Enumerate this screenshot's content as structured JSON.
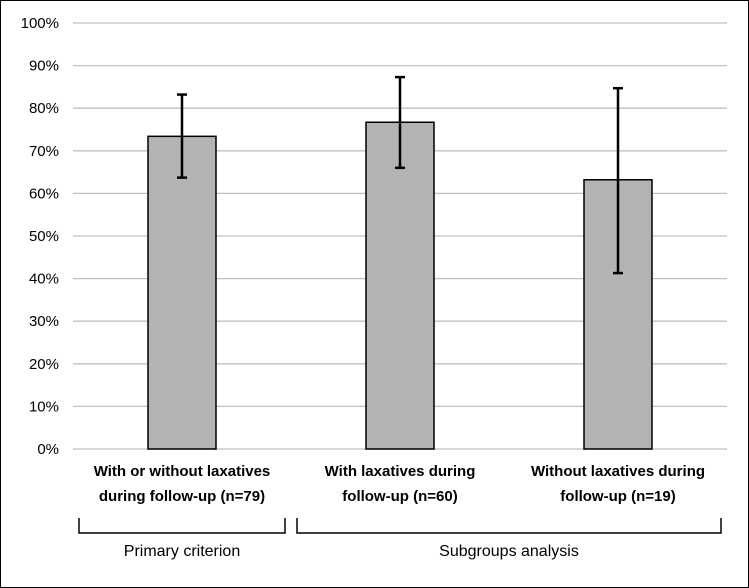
{
  "chart_data": {
    "type": "bar",
    "title": "",
    "xlabel": "",
    "ylabel": "",
    "ylim": [
      0,
      100
    ],
    "ytick_step": 10,
    "ytick_suffix": "%",
    "grid": true,
    "categories": [
      [
        "With or without laxatives",
        "during follow-up (n=79)"
      ],
      [
        "With laxatives during",
        "follow-up (n=60)"
      ],
      [
        "Without laxatives during",
        "follow-up (n=19)"
      ]
    ],
    "values": [
      73.4,
      76.7,
      63.2
    ],
    "error_low": [
      63.7,
      66.0,
      41.3
    ],
    "error_high": [
      83.2,
      87.3,
      84.7
    ],
    "groups": [
      {
        "label": "Primary criterion",
        "span": [
          0,
          0
        ]
      },
      {
        "label": "Subgroups analysis",
        "span": [
          1,
          2
        ]
      }
    ],
    "colors": {
      "bar": "#b3b3b3",
      "bar_edge": "#000000",
      "grid": "#c0c0c0",
      "error": "#000000"
    }
  }
}
